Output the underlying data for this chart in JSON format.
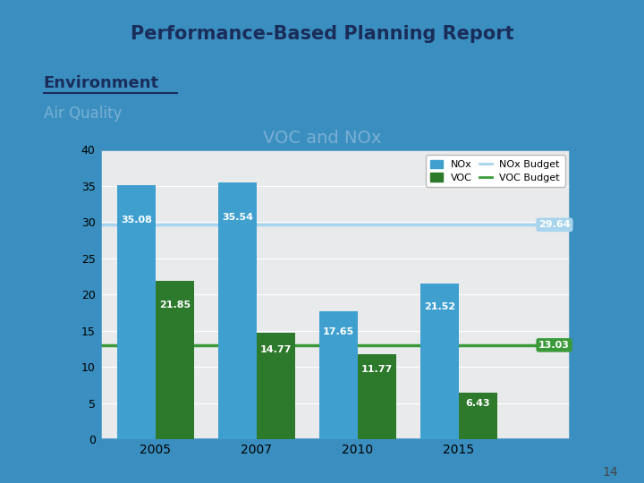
{
  "title": "VOC and NOx",
  "header": "Performance-Based Planning Report",
  "section": "Environment",
  "subsection": "Air Quality",
  "years": [
    2005,
    2007,
    2010,
    2015
  ],
  "nox_values": [
    35.08,
    35.54,
    17.65,
    21.52
  ],
  "voc_values": [
    21.85,
    14.77,
    11.77,
    6.43
  ],
  "nox_budget": 29.64,
  "voc_budget": 13.03,
  "nox_color": "#3FA0D0",
  "voc_color": "#2D7A2D",
  "nox_budget_color": "#A8D4ED",
  "voc_budget_color": "#3A9A3A",
  "bar_width": 0.38,
  "ylim": [
    0,
    40
  ],
  "yticks": [
    0,
    5,
    10,
    15,
    20,
    25,
    30,
    35,
    40
  ],
  "chart_bg": "#E8EAEC",
  "outer_frame_color": "#3A8FC0",
  "header_bg": "#FFFFFF",
  "header_color": "#1A2D5A",
  "section_color": "#1A2D5A",
  "subsection_color": "#7BAFD4",
  "content_bg": "#FFFFFF",
  "page_number": "14",
  "page_bg": "#FFFFFF",
  "blue_strip_color": "#3A8FC0"
}
